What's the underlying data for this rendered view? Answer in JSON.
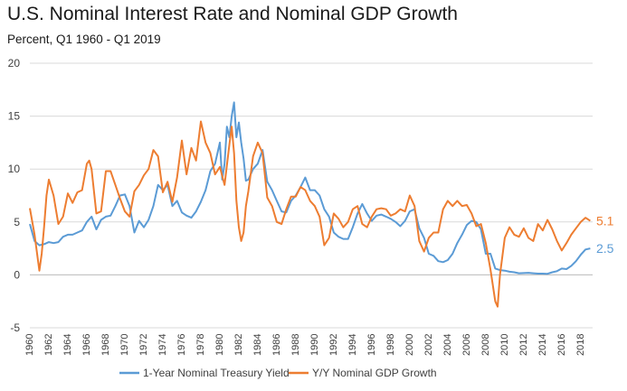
{
  "chart_data": {
    "type": "line",
    "title": "U.S. Nominal Interest Rate and Nominal GDP Growth",
    "subtitle": "Percent, Q1 1960 - Q1 2019",
    "xlabel": "",
    "ylabel": "",
    "ylim": [
      -5,
      20
    ],
    "yticks": [
      -5,
      0,
      5,
      10,
      15,
      20
    ],
    "xlim": [
      1960,
      2019.25
    ],
    "xticks": [
      1960,
      1962,
      1964,
      1966,
      1968,
      1970,
      1972,
      1974,
      1976,
      1978,
      1980,
      1982,
      1984,
      1986,
      1988,
      1990,
      1992,
      1994,
      1996,
      1998,
      2000,
      2002,
      2004,
      2006,
      2008,
      2010,
      2012,
      2014,
      2016,
      2018
    ],
    "grid": true,
    "legend": "bottom-center",
    "series": [
      {
        "name": "1-Year Nominal Treasury Yield",
        "color": "#5B9BD5",
        "end_label": "2.5",
        "x": [
          1960,
          1960.5,
          1961,
          1961.5,
          1962,
          1962.5,
          1963,
          1963.5,
          1964,
          1964.5,
          1965,
          1965.5,
          1966,
          1966.5,
          1967,
          1967.5,
          1968,
          1968.5,
          1969,
          1969.5,
          1970,
          1970.5,
          1971,
          1971.5,
          1972,
          1972.5,
          1973,
          1973.5,
          1974,
          1974.5,
          1975,
          1975.5,
          1976,
          1976.5,
          1977,
          1977.5,
          1978,
          1978.5,
          1979,
          1979.5,
          1980,
          1980.25,
          1980.5,
          1980.75,
          1981,
          1981.25,
          1981.5,
          1981.75,
          1982,
          1982.25,
          1982.5,
          1982.75,
          1983,
          1983.5,
          1984,
          1984.5,
          1985,
          1985.5,
          1986,
          1986.5,
          1987,
          1987.5,
          1988,
          1988.5,
          1989,
          1989.5,
          1990,
          1990.5,
          1991,
          1991.5,
          1992,
          1992.5,
          1993,
          1993.5,
          1994,
          1994.5,
          1995,
          1995.5,
          1996,
          1996.5,
          1997,
          1997.5,
          1998,
          1998.5,
          1999,
          1999.5,
          2000,
          2000.5,
          2001,
          2001.5,
          2002,
          2002.5,
          2003,
          2003.5,
          2004,
          2004.5,
          2005,
          2005.5,
          2006,
          2006.5,
          2007,
          2007.5,
          2008,
          2008.5,
          2009,
          2009.5,
          2010,
          2010.5,
          2011,
          2011.5,
          2012,
          2012.5,
          2013,
          2013.5,
          2014,
          2014.5,
          2015,
          2015.5,
          2016,
          2016.5,
          2017,
          2017.5,
          2018,
          2018.5,
          2019
        ],
        "values": [
          4.8,
          3.2,
          2.8,
          2.9,
          3.1,
          3.0,
          3.1,
          3.6,
          3.8,
          3.8,
          4.0,
          4.2,
          5.0,
          5.5,
          4.3,
          5.2,
          5.5,
          5.6,
          6.5,
          7.5,
          7.6,
          6.5,
          4.0,
          5.1,
          4.5,
          5.2,
          6.5,
          8.5,
          8.0,
          8.5,
          6.5,
          7.0,
          5.9,
          5.6,
          5.4,
          6.0,
          6.9,
          8.0,
          9.8,
          10.5,
          12.5,
          9.0,
          10.5,
          14.0,
          13.0,
          15.0,
          16.3,
          13.0,
          14.4,
          12.5,
          11.0,
          8.9,
          9.0,
          10.0,
          10.5,
          11.8,
          8.8,
          8.0,
          7.0,
          6.0,
          5.9,
          7.0,
          7.5,
          8.3,
          9.2,
          8.0,
          8.0,
          7.5,
          6.2,
          5.5,
          4.0,
          3.6,
          3.4,
          3.4,
          4.5,
          5.8,
          6.7,
          5.8,
          5.1,
          5.6,
          5.7,
          5.5,
          5.3,
          5.0,
          4.6,
          5.1,
          6.0,
          6.2,
          4.4,
          3.5,
          2.0,
          1.8,
          1.3,
          1.2,
          1.4,
          2.0,
          3.0,
          3.8,
          4.7,
          5.1,
          5.0,
          4.3,
          2.0,
          2.0,
          0.6,
          0.45,
          0.4,
          0.3,
          0.25,
          0.15,
          0.17,
          0.2,
          0.15,
          0.12,
          0.12,
          0.1,
          0.25,
          0.35,
          0.6,
          0.55,
          0.85,
          1.3,
          1.9,
          2.4,
          2.5
        ],
        "line_width": 2
      },
      {
        "name": "Y/Y Nominal GDP Growth",
        "color": "#ED7D31",
        "end_label": "5.1",
        "x": [
          1960,
          1960.5,
          1961,
          1961.25,
          1961.5,
          1961.75,
          1962,
          1962.5,
          1963,
          1963.5,
          1964,
          1964.5,
          1965,
          1965.5,
          1966,
          1966.25,
          1966.5,
          1967,
          1967.5,
          1968,
          1968.5,
          1969,
          1969.5,
          1970,
          1970.5,
          1971,
          1971.5,
          1972,
          1972.5,
          1973,
          1973.5,
          1974,
          1974.5,
          1975,
          1975.5,
          1976,
          1976.5,
          1977,
          1977.5,
          1978,
          1978.5,
          1979,
          1979.5,
          1980,
          1980.5,
          1981,
          1981.25,
          1981.5,
          1981.75,
          1982,
          1982.25,
          1982.5,
          1982.75,
          1983,
          1983.5,
          1984,
          1984.5,
          1985,
          1985.5,
          1986,
          1986.5,
          1987,
          1987.5,
          1988,
          1988.5,
          1989,
          1989.5,
          1990,
          1990.5,
          1991,
          1991.5,
          1992,
          1992.5,
          1993,
          1993.5,
          1994,
          1994.5,
          1995,
          1995.5,
          1996,
          1996.5,
          1997,
          1997.5,
          1998,
          1998.5,
          1999,
          1999.5,
          2000,
          2000.5,
          2001,
          2001.5,
          2002,
          2002.5,
          2003,
          2003.5,
          2004,
          2004.5,
          2005,
          2005.5,
          2006,
          2006.5,
          2007,
          2007.5,
          2008,
          2008.5,
          2009,
          2009.25,
          2009.5,
          2010,
          2010.5,
          2011,
          2011.5,
          2012,
          2012.5,
          2013,
          2013.5,
          2014,
          2014.5,
          2015,
          2015.5,
          2016,
          2016.5,
          2017,
          2017.5,
          2018,
          2018.5,
          2019
        ],
        "values": [
          6.3,
          3.8,
          0.4,
          2.0,
          4.5,
          7.5,
          9.0,
          7.5,
          4.8,
          5.5,
          7.7,
          6.8,
          7.8,
          8.0,
          10.5,
          10.8,
          10.0,
          5.8,
          6.0,
          9.8,
          9.8,
          8.5,
          7.2,
          6.0,
          5.5,
          7.9,
          8.5,
          9.4,
          10.0,
          11.8,
          11.2,
          7.8,
          8.8,
          6.9,
          9.2,
          12.7,
          9.5,
          12.0,
          10.8,
          14.5,
          12.5,
          11.5,
          9.5,
          10.2,
          8.5,
          12.3,
          14.0,
          11.5,
          7.0,
          4.5,
          3.2,
          4.0,
          6.5,
          7.9,
          11.2,
          12.5,
          11.5,
          7.3,
          6.5,
          5.0,
          4.8,
          6.2,
          7.4,
          7.4,
          8.3,
          8.0,
          7.0,
          6.5,
          5.5,
          2.8,
          3.5,
          5.8,
          5.3,
          4.5,
          5.0,
          6.2,
          6.5,
          4.8,
          4.5,
          5.5,
          6.2,
          6.3,
          6.2,
          5.6,
          5.8,
          6.2,
          6.0,
          7.5,
          6.5,
          3.2,
          2.2,
          3.5,
          4.0,
          4.0,
          6.2,
          7.0,
          6.5,
          7.0,
          6.5,
          6.6,
          5.8,
          4.6,
          4.8,
          3.0,
          0.5,
          -2.5,
          -3.0,
          0.0,
          3.5,
          4.5,
          3.8,
          3.6,
          4.4,
          3.5,
          3.2,
          4.8,
          4.2,
          5.2,
          4.3,
          3.2,
          2.3,
          3.0,
          3.8,
          4.4,
          5.0,
          5.4,
          5.1
        ],
        "line_width": 2
      }
    ]
  }
}
